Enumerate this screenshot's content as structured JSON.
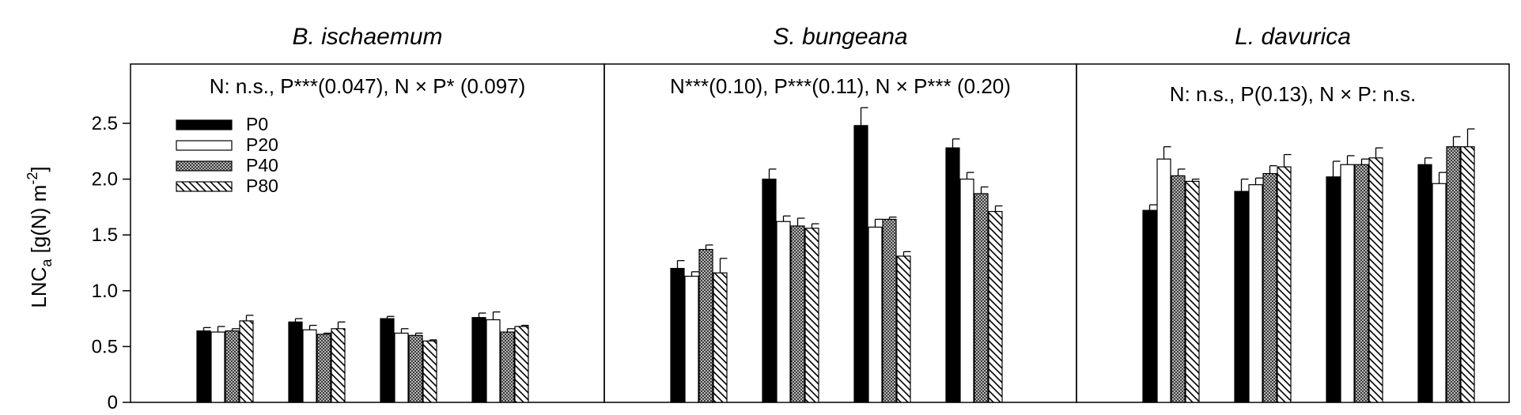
{
  "chart_data": {
    "type": "bar",
    "layout": "three panels sharing one y-axis",
    "ylabel": {
      "prefix": "LNC",
      "sub": "a",
      "mid": " [g(N) m",
      "sup": "-2",
      "suffix": "]"
    },
    "yticks": [
      "0",
      "0.5",
      "1.0",
      "1.5",
      "2.0",
      "2.5"
    ],
    "ylim": [
      0,
      2.9
    ],
    "legend": {
      "placement": "top-left of first panel",
      "entries": [
        {
          "label": "P0",
          "pattern": "solid-black"
        },
        {
          "label": "P20",
          "pattern": "white"
        },
        {
          "label": "P40",
          "pattern": "dotted-grey"
        },
        {
          "label": "P80",
          "pattern": "diagonal-hatch"
        }
      ]
    },
    "groups_per_panel": 4,
    "panels": [
      {
        "title": "B. ischaemum",
        "stat": "N: n.s., P***(0.047), N × P* (0.097)",
        "values": [
          [
            0.64,
            0.63,
            0.64,
            0.73
          ],
          [
            0.72,
            0.65,
            0.61,
            0.66
          ],
          [
            0.75,
            0.62,
            0.6,
            0.55
          ],
          [
            0.76,
            0.74,
            0.63,
            0.68
          ]
        ],
        "errors": [
          [
            0.03,
            0.05,
            0.02,
            0.05
          ],
          [
            0.03,
            0.04,
            0.01,
            0.06
          ],
          [
            0.02,
            0.04,
            0.02,
            0.01
          ],
          [
            0.04,
            0.07,
            0.03,
            0.01
          ]
        ]
      },
      {
        "title": "S. bungeana",
        "stat": "N***(0.10), P***(0.11), N × P*** (0.20)",
        "values": [
          [
            1.2,
            1.13,
            1.37,
            1.16
          ],
          [
            2.0,
            1.62,
            1.58,
            1.56
          ],
          [
            2.48,
            1.57,
            1.64,
            1.31
          ],
          [
            2.28,
            2.0,
            1.87,
            1.71
          ]
        ],
        "errors": [
          [
            0.07,
            0.04,
            0.04,
            0.13
          ],
          [
            0.09,
            0.05,
            0.07,
            0.04
          ],
          [
            0.16,
            0.07,
            0.02,
            0.04
          ],
          [
            0.08,
            0.06,
            0.06,
            0.05
          ]
        ]
      },
      {
        "title": "L. davurica",
        "stat": "N: n.s., P(0.13), N × P: n.s.",
        "values": [
          [
            1.72,
            2.18,
            2.03,
            1.98
          ],
          [
            1.89,
            1.95,
            2.05,
            2.11
          ],
          [
            2.02,
            2.13,
            2.13,
            2.19
          ],
          [
            2.13,
            1.96,
            2.29,
            2.29
          ]
        ],
        "errors": [
          [
            0.05,
            0.11,
            0.06,
            0.02
          ],
          [
            0.11,
            0.06,
            0.07,
            0.11
          ],
          [
            0.14,
            0.08,
            0.05,
            0.09
          ],
          [
            0.06,
            0.1,
            0.09,
            0.16
          ]
        ]
      }
    ]
  }
}
